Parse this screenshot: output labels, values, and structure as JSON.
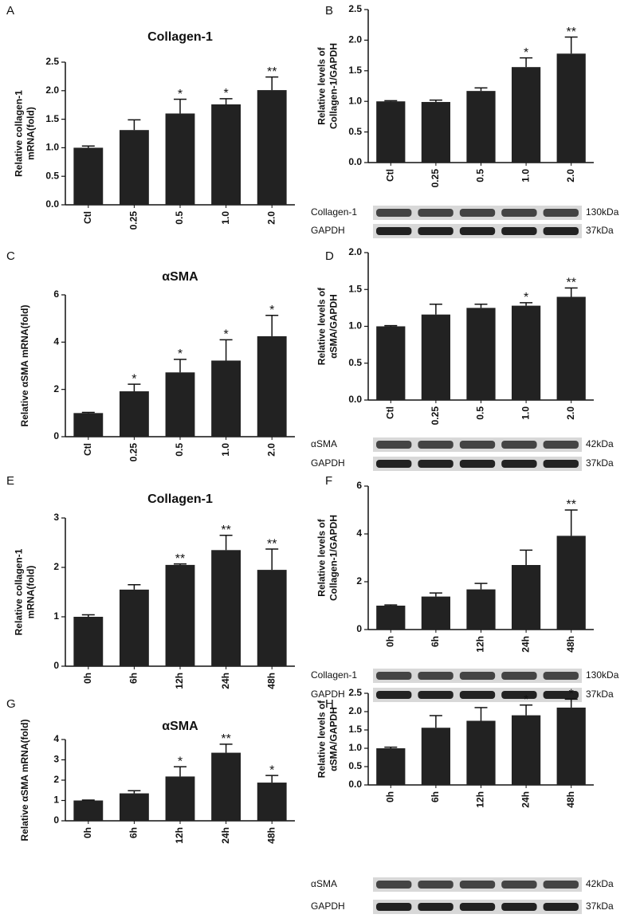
{
  "chart_data": [
    {
      "type": "bar",
      "panel": "A",
      "title": "Collagen-1",
      "y_label": [
        "Relative collagen-1",
        "mRNA(fold)"
      ],
      "categories": [
        "Ctl",
        "0.25",
        "0.5",
        "1.0",
        "2.0"
      ],
      "values": [
        1.0,
        1.31,
        1.6,
        1.76,
        2.01
      ],
      "errors": [
        0.03,
        0.18,
        0.25,
        0.1,
        0.23
      ],
      "annotations": [
        null,
        null,
        "*",
        "*",
        "**"
      ],
      "color": "#222222",
      "ylim": [
        0,
        2.5
      ],
      "yticks": [
        {
          "value": 0,
          "label": "0.0"
        },
        {
          "value": 0.5,
          "label": "0.5"
        },
        {
          "value": 1,
          "label": "1.0"
        },
        {
          "value": 1.5,
          "label": "1.5"
        },
        {
          "value": 2,
          "label": "2.0"
        },
        {
          "value": 2.5,
          "label": "2.5"
        }
      ]
    },
    {
      "type": "bar",
      "panel": "B",
      "y_label": [
        "Relative levels of",
        "Collagen-1/GAPDH"
      ],
      "categories": [
        "Ctl",
        "0.25",
        "0.5",
        "1.0",
        "2.0"
      ],
      "values": [
        1.0,
        0.99,
        1.17,
        1.56,
        1.78
      ],
      "errors": [
        0.01,
        0.03,
        0.05,
        0.15,
        0.27
      ],
      "annotations": [
        null,
        null,
        null,
        "*",
        "**"
      ],
      "color": "#222222",
      "ylim": [
        0,
        2.5
      ],
      "yticks": [
        {
          "value": 0,
          "label": "0.0"
        },
        {
          "value": 0.5,
          "label": "0.5"
        },
        {
          "value": 1,
          "label": "1.0"
        },
        {
          "value": 1.5,
          "label": "1.5"
        },
        {
          "value": 2,
          "label": "2.0"
        },
        {
          "value": 2.5,
          "label": "2.5"
        }
      ],
      "blot": [
        {
          "label": "Collagen-1",
          "size": "130kDa"
        },
        {
          "label": "GAPDH",
          "size": "37kDa"
        }
      ]
    },
    {
      "type": "bar",
      "panel": "C",
      "title": "αSMA",
      "y_label": [
        "Relative αSMA mRNA(fold)"
      ],
      "categories": [
        "Ctl",
        "0.25",
        "0.5",
        "1.0",
        "2.0"
      ],
      "values": [
        1.0,
        1.92,
        2.72,
        3.22,
        4.25
      ],
      "errors": [
        0.03,
        0.3,
        0.55,
        0.88,
        0.88
      ],
      "annotations": [
        null,
        "*",
        "*",
        "*",
        "*"
      ],
      "color": "#222222",
      "ylim": [
        0,
        6
      ],
      "yticks": [
        0,
        2,
        4,
        6
      ]
    },
    {
      "type": "bar",
      "panel": "D",
      "y_label": [
        "Relative levels of",
        "αSMA/GAPDH"
      ],
      "categories": [
        "Ctl",
        "0.25",
        "0.5",
        "1.0",
        "2.0"
      ],
      "values": [
        1.0,
        1.16,
        1.25,
        1.28,
        1.4
      ],
      "errors": [
        0.01,
        0.14,
        0.05,
        0.04,
        0.12
      ],
      "annotations": [
        null,
        null,
        null,
        "*",
        "**"
      ],
      "color": "#222222",
      "ylim": [
        0,
        2
      ],
      "yticks": [
        {
          "value": 0,
          "label": "0.0"
        },
        {
          "value": 0.5,
          "label": "0.5"
        },
        {
          "value": 1,
          "label": "1.0"
        },
        {
          "value": 1.5,
          "label": "1.5"
        },
        {
          "value": 2,
          "label": "2.0"
        }
      ],
      "blot": [
        {
          "label": "αSMA",
          "size": "42kDa"
        },
        {
          "label": "GAPDH",
          "size": "37kDa"
        }
      ]
    },
    {
      "type": "bar",
      "panel": "E",
      "title": "Collagen-1",
      "y_label": [
        "Relative collagen-1",
        "mRNA(fold)"
      ],
      "categories": [
        "0h",
        "6h",
        "12h",
        "24h",
        "48h"
      ],
      "values": [
        1.0,
        1.55,
        2.05,
        2.35,
        1.95
      ],
      "errors": [
        0.04,
        0.1,
        0.02,
        0.3,
        0.42
      ],
      "annotations": [
        null,
        null,
        "**",
        "**",
        "**"
      ],
      "color": "#222222",
      "ylim": [
        0,
        3
      ],
      "yticks": [
        0,
        1,
        2,
        3
      ]
    },
    {
      "type": "bar",
      "panel": "F",
      "y_label": [
        "Relative levels of",
        "Collagen-1/GAPDH"
      ],
      "categories": [
        "0h",
        "6h",
        "12h",
        "24h",
        "48h"
      ],
      "values": [
        1.0,
        1.38,
        1.68,
        2.7,
        3.92
      ],
      "errors": [
        0.03,
        0.15,
        0.25,
        0.62,
        1.08
      ],
      "annotations": [
        null,
        null,
        null,
        null,
        "**"
      ],
      "color": "#222222",
      "ylim": [
        0,
        6
      ],
      "yticks": [
        0,
        2,
        4,
        6
      ],
      "blot": [
        {
          "label": "Collagen-1",
          "size": "130kDa"
        },
        {
          "label": "GAPDH",
          "size": "37kDa"
        }
      ]
    },
    {
      "type": "bar",
      "panel": "G",
      "title": "αSMA",
      "y_label": [
        "Relative αSMA mRNA(fold)"
      ],
      "categories": [
        "0h",
        "6h",
        "12h",
        "24h",
        "48h"
      ],
      "values": [
        1.0,
        1.35,
        2.18,
        3.35,
        1.88
      ],
      "errors": [
        0.02,
        0.13,
        0.48,
        0.42,
        0.35
      ],
      "annotations": [
        null,
        null,
        "*",
        "**",
        "*"
      ],
      "color": "#222222",
      "ylim": [
        0,
        4
      ],
      "yticks": [
        0,
        1,
        2,
        3,
        4
      ]
    },
    {
      "type": "bar",
      "panel": "H",
      "y_label": [
        "Relative levels of",
        "αSMA/GAPDH"
      ],
      "categories": [
        "0h",
        "6h",
        "12h",
        "24h",
        "48h"
      ],
      "values": [
        1.0,
        1.56,
        1.75,
        1.9,
        2.11
      ],
      "errors": [
        0.03,
        0.33,
        0.36,
        0.28,
        0.23
      ],
      "annotations": [
        null,
        null,
        null,
        "*",
        "*"
      ],
      "color": "#222222",
      "ylim": [
        0,
        2.5
      ],
      "yticks": [
        {
          "value": 0,
          "label": "0.0"
        },
        {
          "value": 0.5,
          "label": "0.5"
        },
        {
          "value": 1,
          "label": "1.0"
        },
        {
          "value": 1.5,
          "label": "1.5"
        },
        {
          "value": 2,
          "label": "2.0"
        },
        {
          "value": 2.5,
          "label": "2.5"
        }
      ],
      "blot": [
        {
          "label": "αSMA",
          "size": "42kDa"
        },
        {
          "label": "GAPDH",
          "size": "37kDa"
        }
      ]
    }
  ]
}
